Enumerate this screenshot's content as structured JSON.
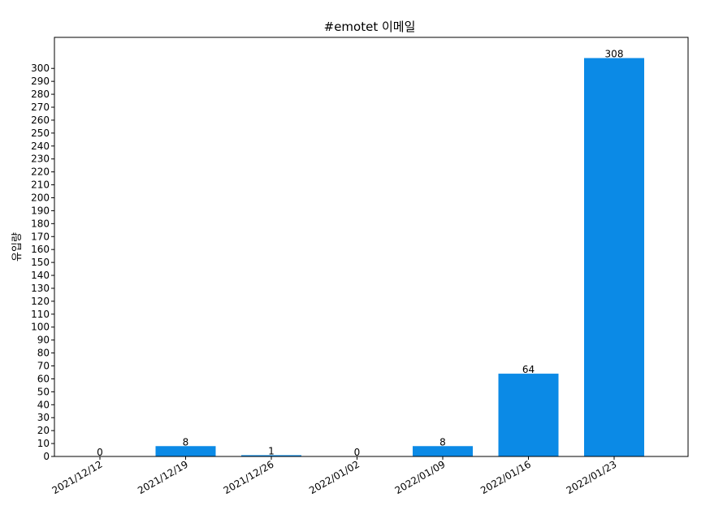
{
  "chart_data": {
    "type": "bar",
    "title": "#emotet 이메일",
    "xlabel": "",
    "ylabel": "유입량",
    "categories": [
      "2021/12/12",
      "2021/12/19",
      "2021/12/26",
      "2022/01/02",
      "2022/01/09",
      "2022/01/16",
      "2022/01/23"
    ],
    "values": [
      0,
      8,
      1,
      0,
      8,
      64,
      308
    ],
    "data_labels": [
      "0",
      "8",
      "1",
      "0",
      "8",
      "64",
      "308"
    ],
    "ylim": [
      0,
      324
    ],
    "yticks": [
      0,
      10,
      20,
      30,
      40,
      50,
      60,
      70,
      80,
      90,
      100,
      110,
      120,
      130,
      140,
      150,
      160,
      170,
      180,
      190,
      200,
      210,
      220,
      230,
      240,
      250,
      260,
      270,
      280,
      290,
      300
    ],
    "grid": false,
    "legend": "none",
    "bar_color": "#0b8ae6",
    "x_tick_rotation": "30deg"
  }
}
